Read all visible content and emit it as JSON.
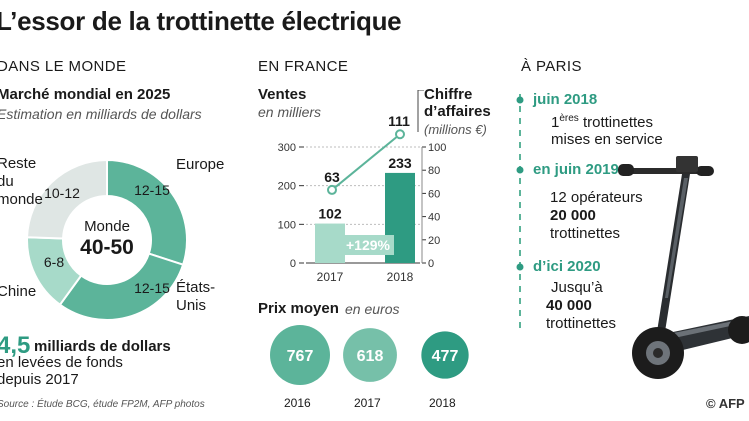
{
  "title": "L’essor de la trottinette électrique",
  "world": {
    "heading": "DANS LE MONDE",
    "market_title": "Marché mondial en 2025",
    "market_subtitle": "Estimation en milliards de dollars",
    "center_label": "Monde",
    "center_value": "40-50",
    "segments": [
      {
        "name": "Europe",
        "value": "12-15",
        "color": "#5cb49a"
      },
      {
        "name": "États-Unis",
        "value": "12-15",
        "color": "#5cb49a"
      },
      {
        "name": "Chine",
        "value": "6-8",
        "color": "#a7dac9"
      },
      {
        "name": "Reste du monde",
        "value": "10-12",
        "color": "#dfe6e4"
      }
    ],
    "funding_value": "4,5",
    "funding_unit": "milliards de dollars",
    "funding_line2": "en levées de fonds",
    "funding_line3": "depuis 2017"
  },
  "source": "Source : Étude BCG, étude FP2M, AFP photos",
  "france": {
    "heading": "EN FRANCE",
    "sales_title": "Ventes",
    "sales_subtitle": "en milliers",
    "revenue_title_1": "Chiffre",
    "revenue_title_2": "d’affaires",
    "revenue_subtitle": "(millions €)",
    "growth_label": "+129%",
    "price_title": "Prix moyen",
    "price_subtitle": "en euros"
  },
  "chart_data": [
    {
      "type": "bar",
      "title": "Ventes",
      "ylabel": "en milliers",
      "categories": [
        "2017",
        "2018"
      ],
      "values": [
        102,
        233
      ],
      "ylim": [
        0,
        300
      ],
      "yticks": [
        0,
        100,
        200,
        300
      ],
      "color": "#2e9b82",
      "secondary": {
        "type": "line",
        "title": "Chiffre d’affaires",
        "ylabel": "(millions €)",
        "values": [
          63,
          111
        ],
        "ylim": [
          0,
          100
        ],
        "yticks": [
          0,
          20,
          40,
          60,
          80,
          100
        ]
      }
    },
    {
      "type": "bubble",
      "title": "Prix moyen",
      "categories": [
        "2016",
        "2017",
        "2018"
      ],
      "values": [
        767,
        618,
        477
      ]
    }
  ],
  "paris": {
    "heading": "À PARIS",
    "items": [
      {
        "date": "juin 2018",
        "line1_num": "1",
        "line1_sup": "ères",
        "line1_rest": " trottinettes",
        "line2": "mises en service",
        "line3": ""
      },
      {
        "date": "en juin 2019",
        "line1_num": "12 opérateurs",
        "line1_sup": "",
        "line1_rest": "",
        "line2": "20 000",
        "line3": "trottinettes"
      },
      {
        "date": "d’ici 2020",
        "line1_num": "Jusqu’à",
        "line1_sup": "",
        "line1_rest": "",
        "line2": "40 000",
        "line3": "trottinettes"
      }
    ]
  },
  "credit": "© AFP"
}
